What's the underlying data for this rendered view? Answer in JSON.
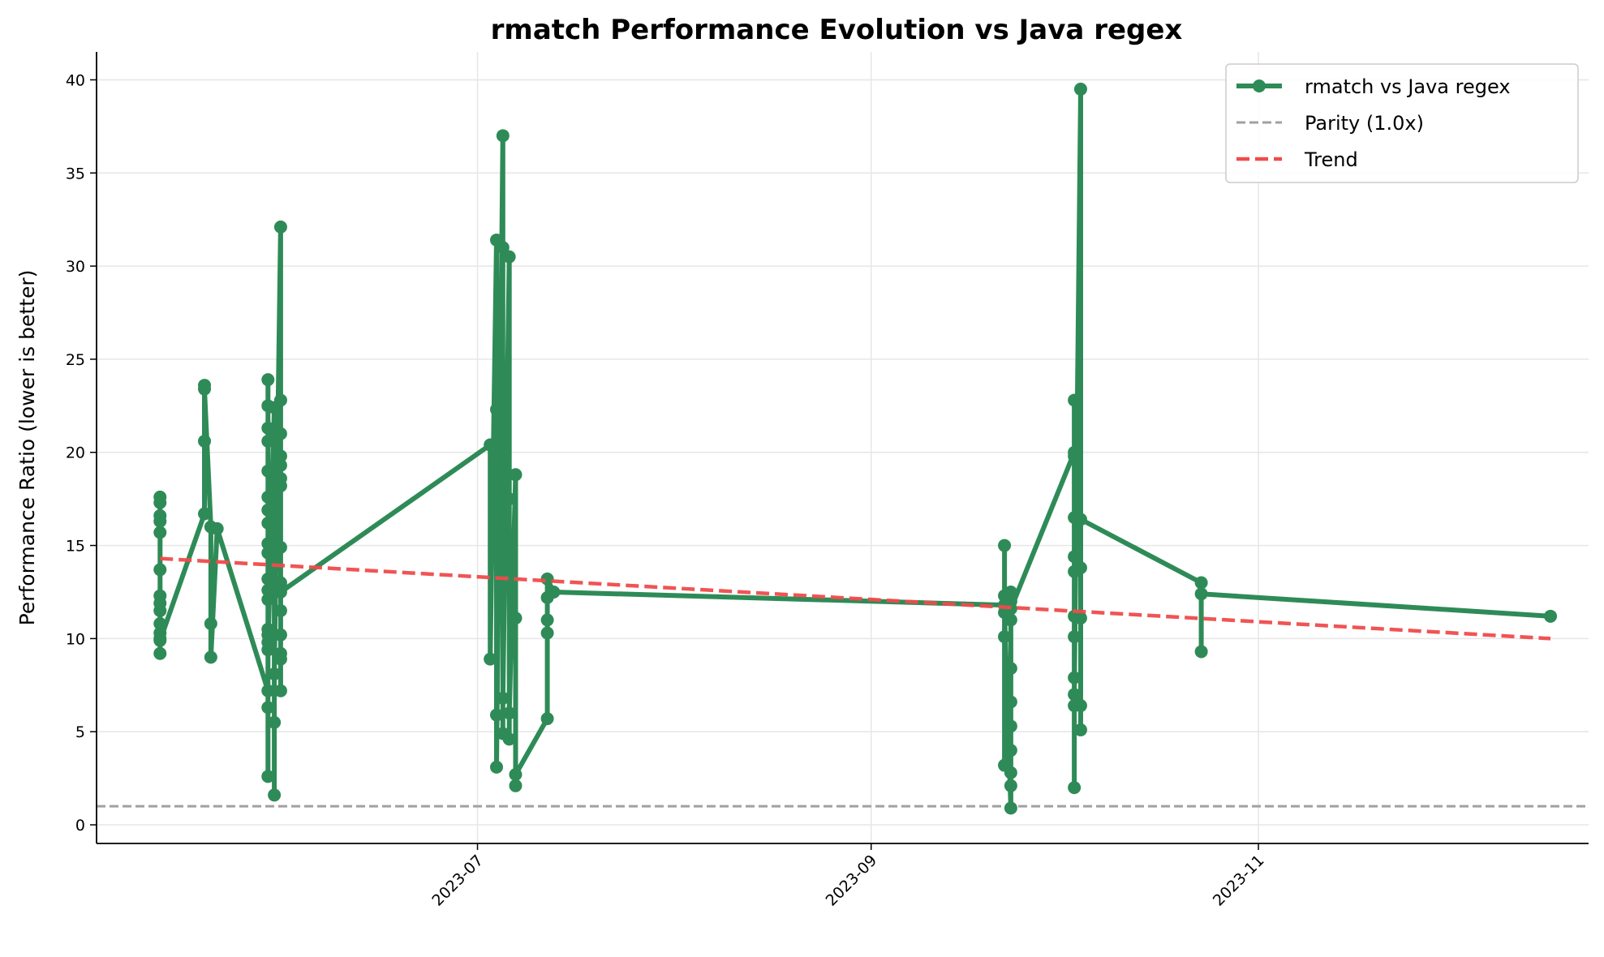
{
  "chart_data": {
    "type": "line",
    "title": "rmatch Performance Evolution vs Java regex",
    "xlabel": "",
    "ylabel": "Performance Ratio (lower is better)",
    "x_axis": {
      "type": "date",
      "range": [
        "2023-05-02",
        "2023-12-23"
      ],
      "ticks": [
        "2023-07-01",
        "2023-09-01",
        "2023-11-01"
      ],
      "tick_labels": [
        "2023-07",
        "2023-09",
        "2023-11"
      ],
      "tick_rotation": 45
    },
    "y_axis": {
      "range": [
        -1,
        41.5
      ],
      "ticks": [
        0,
        5,
        10,
        15,
        20,
        25,
        30,
        35,
        40
      ],
      "tick_labels": [
        "0",
        "5",
        "10",
        "15",
        "20",
        "25",
        "30",
        "35",
        "40"
      ]
    },
    "grid": true,
    "legend_position": "top-right",
    "series": [
      {
        "name": "rmatch vs Java regex",
        "color": "#2e8b57",
        "style": "line-with-markers",
        "points": [
          [
            "2023-05-12",
            17.6
          ],
          [
            "2023-05-12",
            17.3
          ],
          [
            "2023-05-12",
            16.6
          ],
          [
            "2023-05-12",
            16.3
          ],
          [
            "2023-05-12",
            15.7
          ],
          [
            "2023-05-12",
            13.7
          ],
          [
            "2023-05-12",
            12.3
          ],
          [
            "2023-05-12",
            11.9
          ],
          [
            "2023-05-12",
            11.5
          ],
          [
            "2023-05-12",
            10.8
          ],
          [
            "2023-05-12",
            10.3
          ],
          [
            "2023-05-12",
            10.0
          ],
          [
            "2023-05-12",
            9.2
          ],
          [
            "2023-05-12",
            9.9
          ],
          [
            "2023-05-19",
            16.7
          ],
          [
            "2023-05-19",
            20.6
          ],
          [
            "2023-05-19",
            23.6
          ],
          [
            "2023-05-19",
            23.4
          ],
          [
            "2023-05-20",
            16.0
          ],
          [
            "2023-05-20",
            10.8
          ],
          [
            "2023-05-20",
            9.0
          ],
          [
            "2023-05-21",
            15.9
          ],
          [
            "2023-05-29",
            7.2
          ],
          [
            "2023-05-29",
            23.9
          ],
          [
            "2023-05-29",
            2.6
          ],
          [
            "2023-05-29",
            22.5
          ],
          [
            "2023-05-29",
            6.3
          ],
          [
            "2023-05-29",
            21.3
          ],
          [
            "2023-05-29",
            10.5
          ],
          [
            "2023-05-29",
            20.6
          ],
          [
            "2023-05-29",
            12.6
          ],
          [
            "2023-05-29",
            19.0
          ],
          [
            "2023-05-29",
            13.2
          ],
          [
            "2023-05-29",
            17.6
          ],
          [
            "2023-05-29",
            9.8
          ],
          [
            "2023-05-29",
            16.9
          ],
          [
            "2023-05-29",
            14.6
          ],
          [
            "2023-05-29",
            16.2
          ],
          [
            "2023-05-29",
            10.2
          ],
          [
            "2023-05-29",
            15.1
          ],
          [
            "2023-05-29",
            12.1
          ],
          [
            "2023-05-29",
            9.4
          ],
          [
            "2023-05-30",
            22.4
          ],
          [
            "2023-05-30",
            1.6
          ],
          [
            "2023-05-30",
            20.7
          ],
          [
            "2023-05-30",
            5.5
          ],
          [
            "2023-05-30",
            19.0
          ],
          [
            "2023-05-30",
            8.1
          ],
          [
            "2023-05-31",
            32.1
          ],
          [
            "2023-05-31",
            7.2
          ],
          [
            "2023-05-31",
            22.8
          ],
          [
            "2023-05-31",
            8.9
          ],
          [
            "2023-05-31",
            21.0
          ],
          [
            "2023-05-31",
            9.2
          ],
          [
            "2023-05-31",
            19.8
          ],
          [
            "2023-05-31",
            10.2
          ],
          [
            "2023-05-31",
            19.3
          ],
          [
            "2023-05-31",
            11.5
          ],
          [
            "2023-05-31",
            18.6
          ],
          [
            "2023-05-31",
            13.0
          ],
          [
            "2023-05-31",
            18.2
          ],
          [
            "2023-05-31",
            14.9
          ],
          [
            "2023-05-31",
            12.5
          ],
          [
            "2023-07-03",
            20.4
          ],
          [
            "2023-07-03",
            8.9
          ],
          [
            "2023-07-04",
            31.4
          ],
          [
            "2023-07-04",
            5.9
          ],
          [
            "2023-07-04",
            22.3
          ],
          [
            "2023-07-04",
            3.1
          ],
          [
            "2023-07-05",
            37.0
          ],
          [
            "2023-07-05",
            4.9
          ],
          [
            "2023-07-05",
            31.0
          ],
          [
            "2023-07-05",
            6.8
          ],
          [
            "2023-07-06",
            30.5
          ],
          [
            "2023-07-06",
            4.6
          ],
          [
            "2023-07-06",
            17.5
          ],
          [
            "2023-07-06",
            6.0
          ],
          [
            "2023-07-07",
            18.8
          ],
          [
            "2023-07-07",
            2.1
          ],
          [
            "2023-07-07",
            11.1
          ],
          [
            "2023-07-07",
            2.7
          ],
          [
            "2023-07-12",
            5.7
          ],
          [
            "2023-07-12",
            10.3
          ],
          [
            "2023-07-12",
            11.0
          ],
          [
            "2023-07-12",
            12.2
          ],
          [
            "2023-07-12",
            13.2
          ],
          [
            "2023-07-13",
            12.5
          ],
          [
            "2023-09-22",
            11.8
          ],
          [
            "2023-09-22",
            15.0
          ],
          [
            "2023-09-22",
            3.2
          ],
          [
            "2023-09-22",
            12.3
          ],
          [
            "2023-09-22",
            10.1
          ],
          [
            "2023-09-22",
            11.4
          ],
          [
            "2023-09-23",
            0.9
          ],
          [
            "2023-09-23",
            12.0
          ],
          [
            "2023-09-23",
            2.1
          ],
          [
            "2023-09-23",
            11.0
          ],
          [
            "2023-09-23",
            2.8
          ],
          [
            "2023-09-23",
            12.5
          ],
          [
            "2023-09-23",
            4.0
          ],
          [
            "2023-09-23",
            8.4
          ],
          [
            "2023-09-23",
            5.3
          ],
          [
            "2023-09-23",
            6.6
          ],
          [
            "2023-09-23",
            11.6
          ],
          [
            "2023-10-03",
            20.0
          ],
          [
            "2023-10-03",
            2.0
          ],
          [
            "2023-10-03",
            22.8
          ],
          [
            "2023-10-03",
            6.4
          ],
          [
            "2023-10-03",
            19.8
          ],
          [
            "2023-10-03",
            7.9
          ],
          [
            "2023-10-03",
            16.5
          ],
          [
            "2023-10-03",
            10.1
          ],
          [
            "2023-10-03",
            14.4
          ],
          [
            "2023-10-03",
            11.2
          ],
          [
            "2023-10-03",
            13.6
          ],
          [
            "2023-10-03",
            7.0
          ],
          [
            "2023-10-04",
            39.5
          ],
          [
            "2023-10-04",
            6.4
          ],
          [
            "2023-10-04",
            13.8
          ],
          [
            "2023-10-04",
            5.1
          ],
          [
            "2023-10-04",
            11.1
          ],
          [
            "2023-10-04",
            16.4
          ],
          [
            "2023-10-23",
            13.0
          ],
          [
            "2023-10-23",
            9.3
          ],
          [
            "2023-10-23",
            12.4
          ],
          [
            "2023-12-17",
            11.2
          ]
        ]
      },
      {
        "name": "Parity (1.0x)",
        "color": "#a0a0a0",
        "style": "dashed",
        "y_constant": 1.0
      },
      {
        "name": "Trend",
        "color": "#f04b4b",
        "style": "dashed",
        "points": [
          [
            "2023-05-12",
            14.3
          ],
          [
            "2023-12-17",
            10.0
          ]
        ]
      }
    ]
  }
}
